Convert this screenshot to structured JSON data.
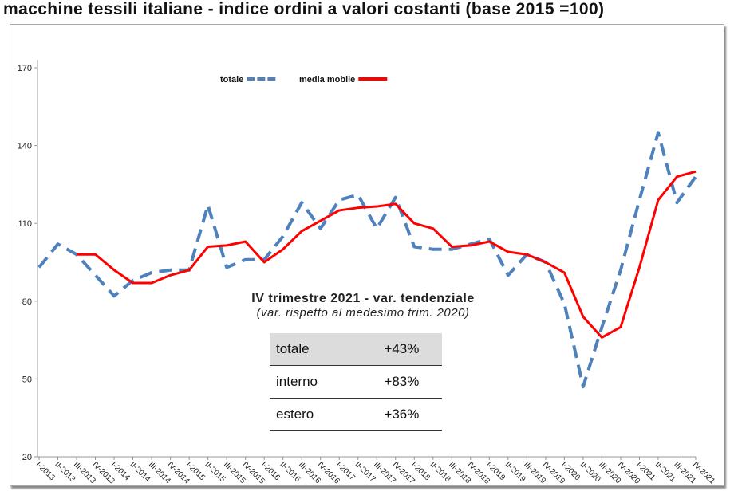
{
  "chart_data": {
    "type": "line",
    "title": "macchine tessili italiane - indice ordini a valori costanti (base 2015 =100)",
    "xlabel": "",
    "ylabel": "",
    "ylim": [
      20,
      170
    ],
    "yticks": [
      20,
      50,
      80,
      110,
      140,
      170
    ],
    "categories": [
      "I-2013",
      "II-2013",
      "III-2013",
      "IV-2013",
      "I-2014",
      "II-2014",
      "III-2014",
      "IV-2014",
      "I-2015",
      "II-2015",
      "III-2015",
      "IV-2015",
      "I-2016",
      "II-2016",
      "III-2016",
      "IV-2016",
      "I-2017",
      "II-2017",
      "III-2017",
      "IV-2017",
      "I-2018",
      "II-2018",
      "III-2018",
      "IV-2018",
      "I-2019",
      "II-2019",
      "III-2019",
      "IV-2019",
      "I-2020",
      "II-2020",
      "III-2020",
      "IV-2020",
      "I-2021",
      "II-2021",
      "III-2021",
      "IV-2021"
    ],
    "series": [
      {
        "name": "totale",
        "color": "#4f81bd",
        "style": "dashed",
        "values": [
          93,
          102,
          98,
          90,
          82,
          88,
          91,
          92,
          92,
          117,
          93,
          96,
          96,
          105,
          118,
          108,
          119,
          121,
          108,
          120,
          101,
          100,
          100,
          102,
          104,
          90,
          98,
          95,
          79,
          47,
          70,
          92,
          119,
          145,
          118,
          128
        ]
      },
      {
        "name": "media mobile",
        "color": "#ff0000",
        "style": "solid",
        "values": [
          null,
          null,
          98,
          98,
          92,
          87,
          87,
          90,
          92,
          101,
          101.5,
          103,
          95,
          100,
          107,
          111,
          115,
          116,
          116.5,
          117.5,
          110,
          108,
          101,
          101.5,
          103,
          99,
          98,
          95,
          91,
          74,
          66,
          70,
          93,
          119,
          128,
          130
        ]
      }
    ],
    "legend_position": "top-center",
    "grid": false
  },
  "annotation": {
    "heading": "IV trimestre 2021 - var. tendenziale",
    "subheading": "(var. rispetto al medesimo trim. 2020)",
    "rows": [
      {
        "label": "totale",
        "value": "+43%"
      },
      {
        "label": "interno",
        "value": "+83%"
      },
      {
        "label": "estero",
        "value": "+36%"
      }
    ]
  }
}
